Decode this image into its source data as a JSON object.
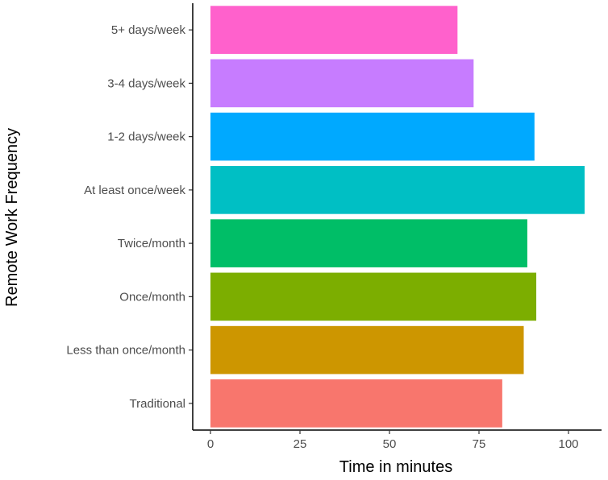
{
  "chart_data": {
    "type": "bar",
    "orientation": "horizontal",
    "xlabel": "Time in minutes",
    "ylabel": "Remote Work Frequency",
    "xlim": [
      0,
      105
    ],
    "x_ticks": [
      "0",
      "25",
      "50",
      "75",
      "100"
    ],
    "grid": false,
    "categories": [
      "Traditional",
      "Less than once/month",
      "Once/month",
      "Twice/month",
      "At least once/week",
      "1-2 days/week",
      "3-4 days/week",
      "5+ days/week"
    ],
    "values": [
      81.5,
      87.5,
      91,
      88.5,
      104.5,
      90.5,
      73.5,
      69
    ],
    "colors": [
      "#F8766D",
      "#CD9600",
      "#7CAE00",
      "#00BE67",
      "#00BFC4",
      "#00A9FF",
      "#C77CFF",
      "#FF61CC"
    ]
  }
}
